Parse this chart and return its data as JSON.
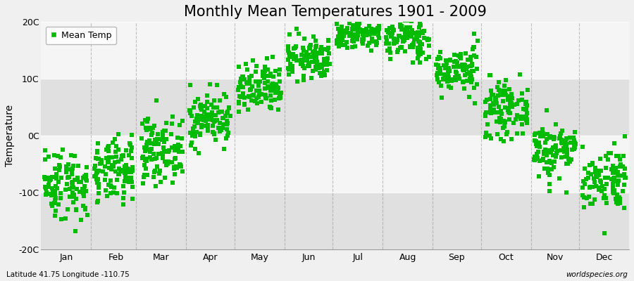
{
  "title": "Monthly Mean Temperatures 1901 - 2009",
  "ylabel": "Temperature",
  "dot_color": "#00bb00",
  "dot_size": 18,
  "background_color": "#f0f0f0",
  "plot_bg_light": "#f5f5f5",
  "plot_bg_dark": "#e0e0e0",
  "legend_label": "Mean Temp",
  "legend_color": "#00bb00",
  "ylim": [
    -20,
    20
  ],
  "ytick_labels": [
    "20C",
    "10C",
    "0C",
    "-10C",
    "-20C"
  ],
  "ytick_values": [
    20,
    10,
    0,
    -10,
    -20
  ],
  "month_labels": [
    "Jan",
    "Feb",
    "Mar",
    "Apr",
    "May",
    "Jun",
    "Jul",
    "Aug",
    "Sep",
    "Oct",
    "Nov",
    "Dec"
  ],
  "month_tick_positions": [
    15.5,
    46.5,
    74.5,
    105,
    135.5,
    166,
    196.5,
    227.5,
    258,
    288.5,
    319,
    349.5
  ],
  "month_dividers": [
    31,
    59,
    90,
    120,
    151,
    181,
    212,
    243,
    273,
    304,
    334
  ],
  "grid_color": "#999999",
  "subtitle_left": "Latitude 41.75 Longitude -110.75",
  "subtitle_right": "worldspecies.org",
  "title_fontsize": 15,
  "axis_fontsize": 10,
  "tick_fontsize": 9,
  "monthly_means": [
    -8.5,
    -6.5,
    -2.5,
    3.0,
    8.0,
    13.5,
    18.0,
    17.0,
    11.5,
    4.5,
    -2.5,
    -7.5
  ],
  "monthly_stds": [
    3.2,
    2.8,
    2.8,
    2.3,
    2.3,
    1.8,
    1.5,
    1.8,
    2.0,
    2.3,
    2.5,
    2.8
  ],
  "n_years": 109
}
